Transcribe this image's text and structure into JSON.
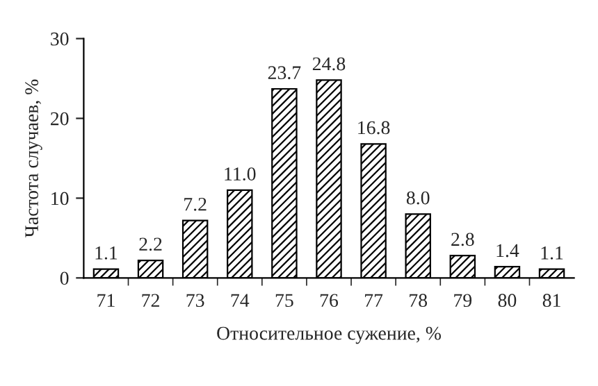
{
  "chart_data": {
    "type": "bar",
    "xlabel": "Относительное сужение, %",
    "ylabel": "Частота случаев, %",
    "categories": [
      "71",
      "72",
      "73",
      "74",
      "75",
      "76",
      "77",
      "78",
      "79",
      "80",
      "81"
    ],
    "values": [
      1.1,
      2.2,
      7.2,
      11.0,
      23.7,
      24.8,
      16.8,
      8.0,
      2.8,
      1.4,
      1.1
    ],
    "value_labels": [
      "1.1",
      "2.2",
      "7.2",
      "11.0",
      "23.7",
      "24.8",
      "16.8",
      "8.0",
      "2.8",
      "1.4",
      "1.1"
    ],
    "color": "#000000",
    "ylim": [
      0,
      30
    ],
    "yticks": [
      0,
      10,
      20,
      30
    ],
    "grid": false,
    "legend": false
  }
}
